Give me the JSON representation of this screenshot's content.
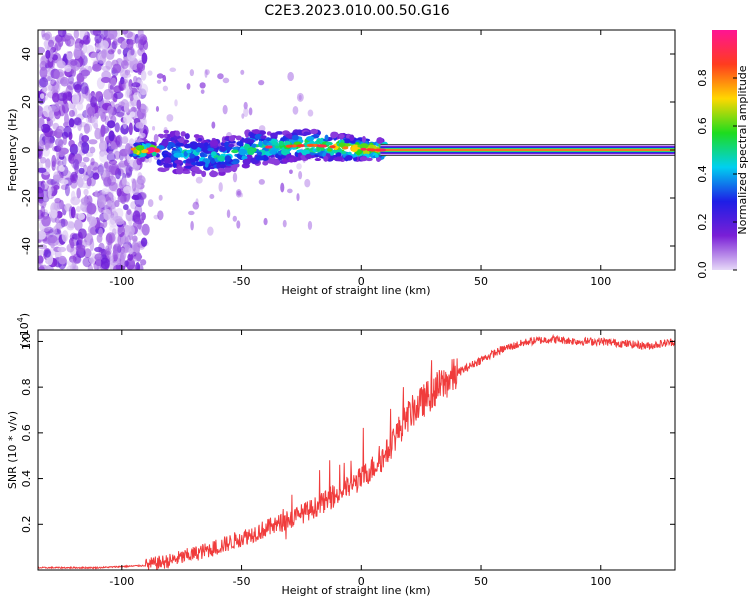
{
  "title": "C2E3.2023.010.00.50.G16",
  "chart_data": [
    {
      "type": "heatmap",
      "xlabel": "Height of straight line (km)",
      "ylabel": "Frequency (Hz)",
      "xlim": [
        -135,
        131
      ],
      "ylim": [
        -50,
        50
      ],
      "x_ticks": [
        -100,
        -50,
        0,
        50,
        100
      ],
      "y_ticks": [
        -40,
        -20,
        0,
        20,
        40
      ],
      "colorbar": {
        "label": "Normalized spectral amplitude",
        "range": [
          0,
          1
        ],
        "ticks": [
          "0.0",
          "0.2",
          "0.4",
          "0.6",
          "0.8"
        ],
        "colors": [
          "#e6d9f7",
          "#7a1fd6",
          "#1e1ee6",
          "#00d0f0",
          "#1edc1e",
          "#ffd700",
          "#ff3c1e",
          "#ff1493"
        ]
      },
      "ridge": [
        {
          "x": -85,
          "y": 0,
          "amp": 0.35
        },
        {
          "x": -60,
          "y": -3,
          "amp": 0.45
        },
        {
          "x": -45,
          "y": 1,
          "amp": 0.5
        },
        {
          "x": -20,
          "y": 2,
          "amp": 0.6
        },
        {
          "x": 5,
          "y": 0,
          "amp": 0.8
        },
        {
          "x": 131,
          "y": 0,
          "amp": 0.95
        }
      ]
    },
    {
      "type": "line",
      "xlabel": "Height of straight line (km)",
      "ylabel": "SNR (10 * v/v)",
      "y_multiplier": "(x10",
      "y_multiplier_exp": "4",
      "y_multiplier_close": ")",
      "xlim": [
        -135,
        131
      ],
      "ylim": [
        0,
        1.05
      ],
      "x_ticks": [
        -100,
        -50,
        0,
        50,
        100
      ],
      "y_ticks": [
        0.2,
        0.4,
        0.6,
        0.8,
        1.0
      ],
      "y_tick_labels": [
        "0.2",
        "0.4",
        "0.6",
        "0.8",
        "1.0"
      ],
      "line_color": "#f03c3c",
      "series": [
        {
          "x": [
            -135,
            -110,
            -90,
            -80,
            -70,
            -60,
            -50,
            -40,
            -30,
            -20,
            -10,
            0,
            5,
            10,
            15,
            20,
            25,
            30,
            40,
            50,
            60,
            70,
            80,
            90,
            100,
            110,
            120,
            131
          ],
          "y": [
            0.01,
            0.01,
            0.02,
            0.04,
            0.07,
            0.1,
            0.14,
            0.18,
            0.22,
            0.27,
            0.33,
            0.4,
            0.45,
            0.5,
            0.6,
            0.68,
            0.73,
            0.78,
            0.86,
            0.92,
            0.97,
            1.0,
            1.01,
            1.0,
            1.0,
            0.99,
            0.98,
            1.0
          ]
        }
      ]
    }
  ]
}
